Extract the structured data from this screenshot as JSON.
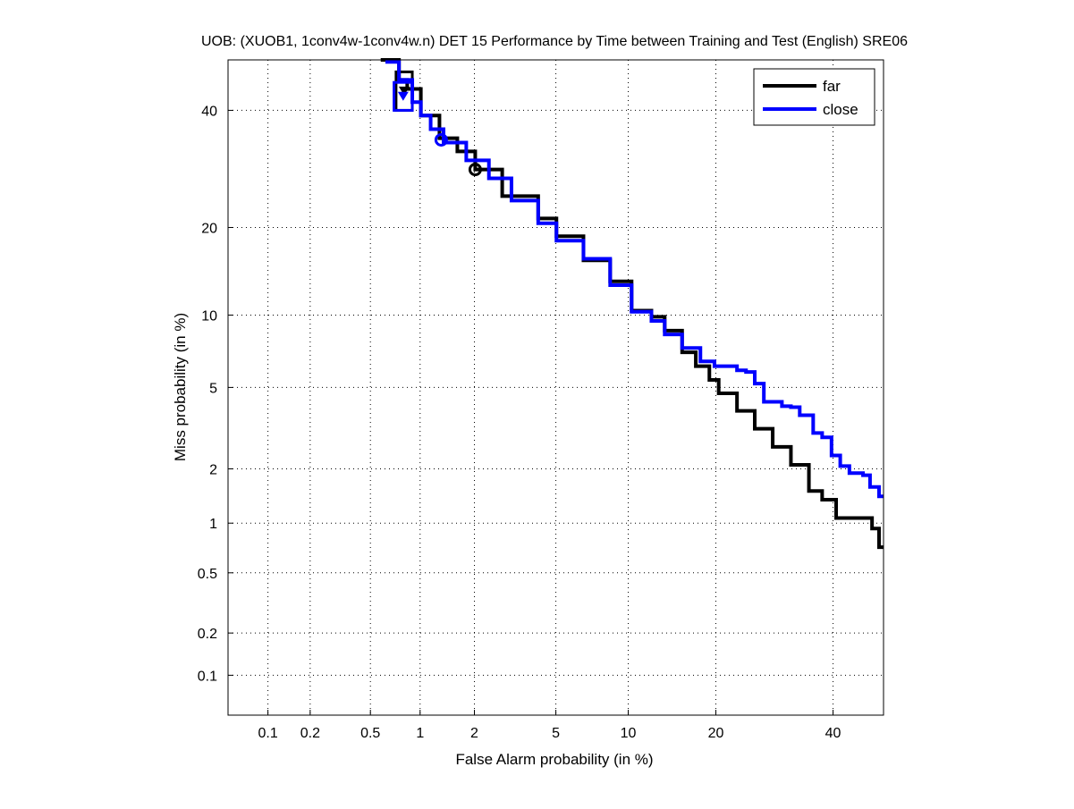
{
  "chart_data": {
    "type": "line",
    "scale": "normal-deviate (DET)",
    "title": "UOB: (XUOB1, 1conv4w-1conv4w.n) DET 15 Performance by Time between Training and Test (English) SRE06",
    "xlabel": "False Alarm probability (in %)",
    "ylabel": "Miss probability (in %)",
    "xlim": [
      0.05,
      50
    ],
    "ylim": [
      0.05,
      50
    ],
    "xticks": [
      0.1,
      0.2,
      0.5,
      1,
      2,
      5,
      10,
      20,
      40
    ],
    "xtick_labels": [
      "0.1",
      "0.2",
      "0.5",
      "1",
      "2",
      "5",
      "10",
      "20",
      "40"
    ],
    "yticks": [
      0.1,
      0.2,
      0.5,
      1,
      2,
      5,
      10,
      20,
      40
    ],
    "ytick_labels": [
      "0.1",
      "0.2",
      "0.5",
      "1",
      "2",
      "5",
      "10",
      "20",
      "40"
    ],
    "grid": true,
    "legend_position": "top-right",
    "series": [
      {
        "name": "far",
        "color": "#000000",
        "points": [
          [
            0.58,
            50
          ],
          [
            0.75,
            46
          ],
          [
            0.84,
            44.2
          ],
          [
            1.01,
            39
          ],
          [
            1.29,
            34.7
          ],
          [
            1.62,
            32.3
          ],
          [
            2.02,
            29.1
          ],
          [
            2.78,
            24.7
          ],
          [
            4.15,
            21.3
          ],
          [
            5.03,
            18.8
          ],
          [
            6.6,
            15.7
          ],
          [
            8.5,
            13.3
          ],
          [
            10.3,
            10.4
          ],
          [
            12.2,
            9.85
          ],
          [
            13.6,
            8.7
          ],
          [
            15.6,
            7.1
          ],
          [
            17.3,
            6.2
          ],
          [
            19.1,
            5.4
          ],
          [
            20.4,
            4.7
          ],
          [
            23.1,
            3.9
          ],
          [
            25.9,
            3.2
          ],
          [
            28.9,
            2.6
          ],
          [
            32.1,
            2.1
          ],
          [
            35.4,
            1.52
          ],
          [
            37.9,
            1.36
          ],
          [
            40.6,
            1.07
          ],
          [
            45.9,
            1.07
          ],
          [
            47.7,
            0.93
          ],
          [
            49.1,
            0.93
          ],
          [
            49.1,
            0.72
          ],
          [
            50,
            0.72
          ]
        ],
        "circle_marker": [
          2.02,
          29.1
        ],
        "box": {
          "x": [
            0.72,
            0.9
          ],
          "y": [
            40,
            47.6
          ]
        }
      },
      {
        "name": "close",
        "color": "#0000ff",
        "points": [
          [
            0.62,
            49.6
          ],
          [
            0.75,
            46
          ],
          [
            0.9,
            41.6
          ],
          [
            1.01,
            39
          ],
          [
            1.15,
            36.4
          ],
          [
            1.36,
            33.9
          ],
          [
            1.81,
            30.7
          ],
          [
            2.38,
            27.6
          ],
          [
            3.09,
            24
          ],
          [
            4.15,
            20.6
          ],
          [
            5.03,
            18.2
          ],
          [
            6.6,
            15.9
          ],
          [
            8.5,
            12.9
          ],
          [
            10.3,
            10.3
          ],
          [
            12.2,
            9.5
          ],
          [
            13.6,
            8.4
          ],
          [
            15.6,
            7.4
          ],
          [
            17.9,
            6.5
          ],
          [
            19.8,
            6.2
          ],
          [
            23.1,
            5.95
          ],
          [
            24.5,
            5.85
          ],
          [
            25.9,
            5.2
          ],
          [
            27.4,
            4.3
          ],
          [
            30.5,
            4.1
          ],
          [
            32.1,
            4.06
          ],
          [
            33.7,
            3.72
          ],
          [
            36.2,
            3.05
          ],
          [
            37.9,
            2.9
          ],
          [
            39.7,
            2.35
          ],
          [
            41.4,
            2.07
          ],
          [
            43.2,
            1.9
          ],
          [
            45.9,
            1.85
          ],
          [
            47.3,
            1.6
          ],
          [
            49.1,
            1.42
          ],
          [
            50,
            1.42
          ]
        ],
        "circle_marker": [
          1.32,
          34.4
        ],
        "box": {
          "x": [
            0.7,
            0.9
          ],
          "y": [
            40,
            45.5
          ]
        }
      }
    ]
  }
}
